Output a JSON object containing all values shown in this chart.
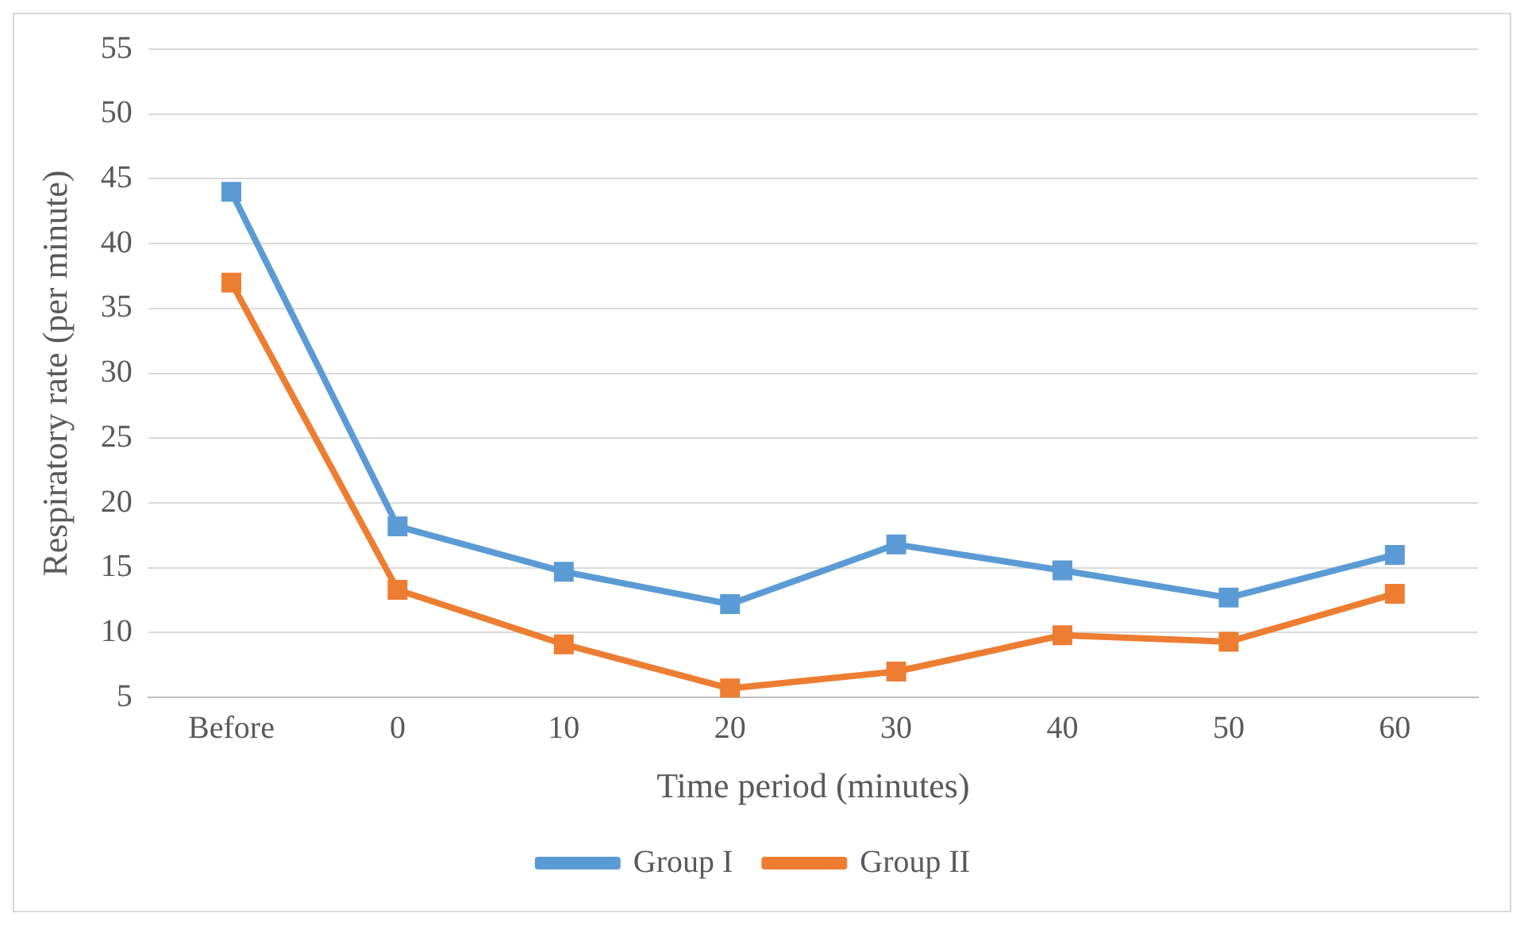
{
  "chart_data": {
    "type": "line",
    "xlabel": "Time period (minutes)",
    "ylabel": "Respiratory rate (per minute)",
    "categories": [
      "Before",
      "0",
      "10",
      "20",
      "30",
      "40",
      "50",
      "60"
    ],
    "series": [
      {
        "name": "Group I",
        "color": "#5b9bd5",
        "values": [
          44,
          18.2,
          14.7,
          12.2,
          16.8,
          14.8,
          12.7,
          16
        ]
      },
      {
        "name": "Group II",
        "color": "#ed7d31",
        "values": [
          37,
          13.3,
          9.1,
          5.7,
          7,
          9.8,
          9.3,
          13
        ]
      }
    ],
    "ylim": [
      5,
      55
    ],
    "yticks": [
      5,
      10,
      15,
      20,
      25,
      30,
      35,
      40,
      45,
      50,
      55
    ],
    "grid": "y",
    "legend": "bottom",
    "marker": "square",
    "line_style": "solid"
  }
}
